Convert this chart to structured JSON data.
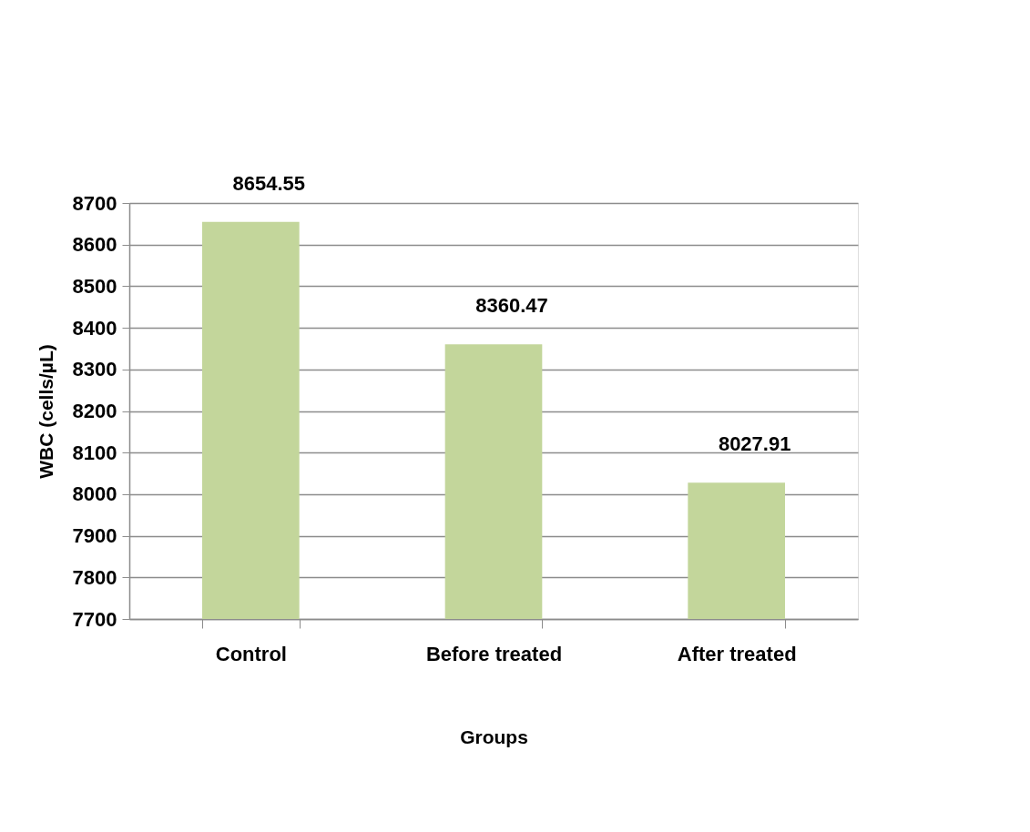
{
  "chart_data": {
    "type": "bar",
    "xlabel": "Groups",
    "ylabel": "WBC (cells/µL)",
    "categories": [
      "Control",
      "Before treated",
      "After treated"
    ],
    "values": [
      8654.55,
      8360.47,
      8027.91
    ],
    "color": "#c3d69b",
    "ylim": [
      7700,
      8700
    ],
    "yticks": [
      7700,
      7800,
      7900,
      8000,
      8100,
      8200,
      8300,
      8400,
      8500,
      8600,
      8700
    ],
    "grid": "y",
    "data_labels": true
  }
}
